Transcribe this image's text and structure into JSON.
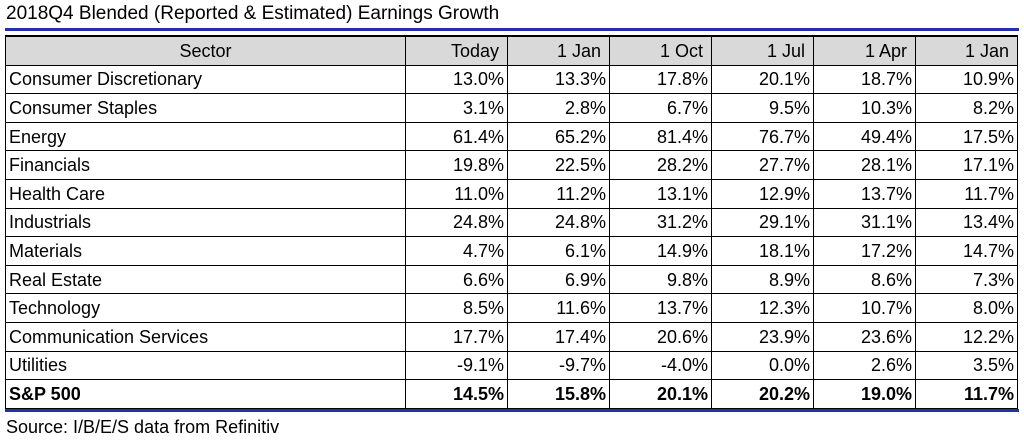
{
  "title": "2018Q4 Blended (Reported & Estimated) Earnings Growth",
  "columns": [
    "Sector",
    "Today",
    "1 Jan",
    "1 Oct",
    "1 Jul",
    "1 Apr",
    "1 Jan"
  ],
  "rows": [
    {
      "sector": "Consumer Discretionary",
      "values": [
        "13.0%",
        "13.3%",
        "17.8%",
        "20.1%",
        "18.7%",
        "10.9%"
      ]
    },
    {
      "sector": "Consumer Staples",
      "values": [
        "3.1%",
        "2.8%",
        "6.7%",
        "9.5%",
        "10.3%",
        "8.2%"
      ]
    },
    {
      "sector": "Energy",
      "values": [
        "61.4%",
        "65.2%",
        "81.4%",
        "76.7%",
        "49.4%",
        "17.5%"
      ]
    },
    {
      "sector": "Financials",
      "values": [
        "19.8%",
        "22.5%",
        "28.2%",
        "27.7%",
        "28.1%",
        "17.1%"
      ]
    },
    {
      "sector": "Health Care",
      "values": [
        "11.0%",
        "11.2%",
        "13.1%",
        "12.9%",
        "13.7%",
        "11.7%"
      ]
    },
    {
      "sector": "Industrials",
      "values": [
        "24.8%",
        "24.8%",
        "31.2%",
        "29.1%",
        "31.1%",
        "13.4%"
      ]
    },
    {
      "sector": "Materials",
      "values": [
        "4.7%",
        "6.1%",
        "14.9%",
        "18.1%",
        "17.2%",
        "14.7%"
      ]
    },
    {
      "sector": "Real Estate",
      "values": [
        "6.6%",
        "6.9%",
        "9.8%",
        "8.9%",
        "8.6%",
        "7.3%"
      ]
    },
    {
      "sector": "Technology",
      "values": [
        "8.5%",
        "11.6%",
        "13.7%",
        "12.3%",
        "10.7%",
        "8.0%"
      ]
    },
    {
      "sector": "Communication Services",
      "values": [
        "17.7%",
        "17.4%",
        "20.6%",
        "23.9%",
        "23.6%",
        "12.2%"
      ]
    },
    {
      "sector": "Utilities",
      "values": [
        "-9.1%",
        "-9.7%",
        "-4.0%",
        "0.0%",
        "2.6%",
        "3.5%"
      ]
    },
    {
      "sector": "S&P 500",
      "values": [
        "14.5%",
        "15.8%",
        "20.1%",
        "20.2%",
        "19.0%",
        "11.7%"
      ],
      "total": true
    }
  ],
  "source": "Source: I/B/E/S data from Refinitiv",
  "colors": {
    "rule": "#2233aa",
    "header_bg": "#d9d9d9"
  }
}
